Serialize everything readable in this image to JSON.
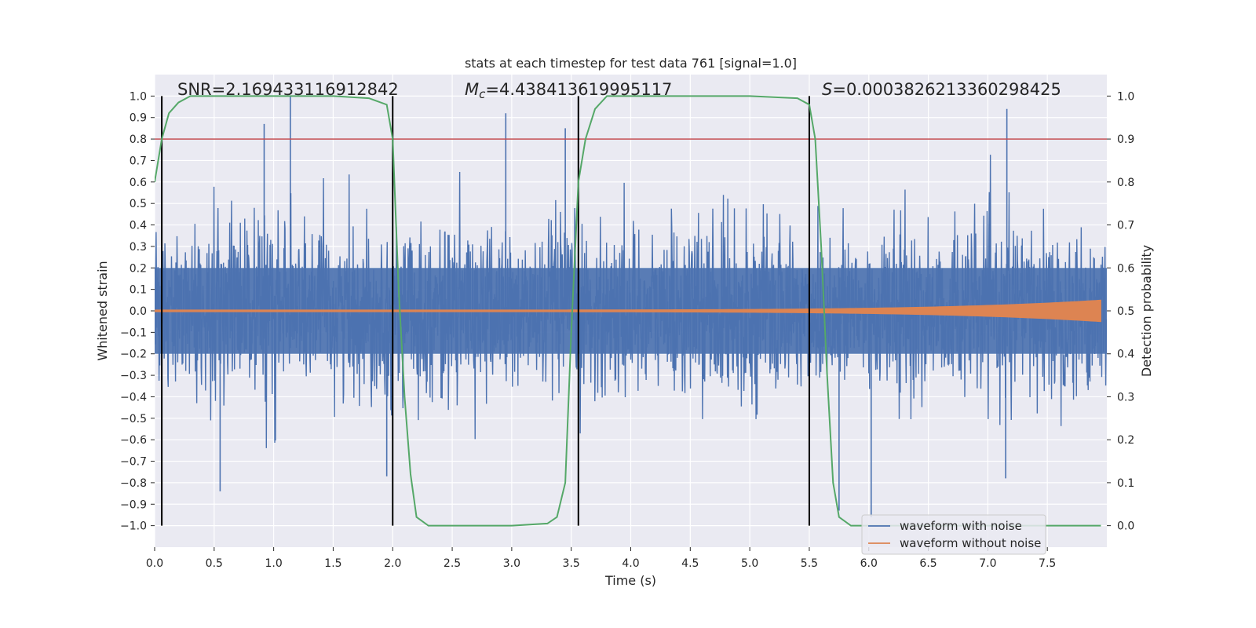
{
  "chart_data": {
    "type": "line",
    "title": "stats at each timestep for test data 761 [signal=1.0]",
    "xlabel": "Time (s)",
    "ylabel": "Whitened strain",
    "y2label": "Detection probability",
    "xlim": [
      0.0,
      8.0
    ],
    "ylim": [
      -1.1,
      1.1
    ],
    "y2lim": [
      -0.05,
      1.05
    ],
    "xticks": [
      0.0,
      0.5,
      1.0,
      1.5,
      2.0,
      2.5,
      3.0,
      3.5,
      4.0,
      4.5,
      5.0,
      5.5,
      6.0,
      6.5,
      7.0,
      7.5
    ],
    "xtick_labels": [
      "0.0",
      "0.5",
      "1.0",
      "1.5",
      "2.0",
      "2.5",
      "3.0",
      "3.5",
      "4.0",
      "4.5",
      "5.0",
      "5.5",
      "6.0",
      "6.5",
      "7.0",
      "7.5"
    ],
    "yticks": [
      -1.0,
      -0.9,
      -0.8,
      -0.7,
      -0.6,
      -0.5,
      -0.4,
      -0.3,
      -0.2,
      -0.1,
      0.0,
      0.1,
      0.2,
      0.3,
      0.4,
      0.5,
      0.6,
      0.7,
      0.8,
      0.9,
      1.0
    ],
    "ytick_labels": [
      "−1.0",
      "−0.9",
      "−0.8",
      "−0.7",
      "−0.6",
      "−0.5",
      "−0.4",
      "−0.3",
      "−0.2",
      "−0.1",
      "0.0",
      "0.1",
      "0.2",
      "0.3",
      "0.4",
      "0.5",
      "0.6",
      "0.7",
      "0.8",
      "0.9",
      "1.0"
    ],
    "y2ticks": [
      0.0,
      0.1,
      0.2,
      0.3,
      0.4,
      0.5,
      0.6,
      0.7,
      0.8,
      0.9,
      1.0
    ],
    "y2tick_labels": [
      "0.0",
      "0.1",
      "0.2",
      "0.3",
      "0.4",
      "0.5",
      "0.6",
      "0.7",
      "0.8",
      "0.9",
      "1.0"
    ],
    "grid": true,
    "legend_placement": "lower-right",
    "annotations": {
      "snr": "SNR=2.169433116912842",
      "mc_symbol": "M",
      "mc_sub": "c",
      "mc_value": "=4.438413619995117",
      "s_symbol": "S",
      "s_value": "=0.0003826213360298425"
    },
    "threshold_y": 0.8,
    "vertical_markers_x": [
      0.06,
      2.0,
      3.56,
      5.5
    ],
    "series": [
      {
        "name": "waveform with noise",
        "axis": "left",
        "color": "#4c72b0",
        "x_range": [
          0.0,
          8.0
        ],
        "envelope_approx": 0.45,
        "peak_spikes": [
          {
            "x": 1.14,
            "y": 1.0
          },
          {
            "x": 0.92,
            "y": 0.87
          },
          {
            "x": 2.95,
            "y": 0.92
          },
          {
            "x": 7.16,
            "y": 0.94
          },
          {
            "x": 3.45,
            "y": 0.85
          },
          {
            "x": 0.55,
            "y": -0.84
          },
          {
            "x": 5.75,
            "y": -0.93
          },
          {
            "x": 6.02,
            "y": -0.96
          },
          {
            "x": 7.15,
            "y": -0.78
          },
          {
            "x": 1.95,
            "y": -0.77
          }
        ]
      },
      {
        "name": "waveform without noise",
        "axis": "left",
        "color": "#dd8452",
        "x_range": [
          0.0,
          7.95
        ],
        "amplitude_start": 0.004,
        "amplitude_end": 0.05
      },
      {
        "name": "detection probability",
        "axis": "right",
        "color": "#55a868",
        "x": [
          0.0,
          0.06,
          0.12,
          0.2,
          0.3,
          0.5,
          1.0,
          1.5,
          1.8,
          1.95,
          2.0,
          2.05,
          2.1,
          2.15,
          2.2,
          2.3,
          2.5,
          3.0,
          3.3,
          3.38,
          3.45,
          3.5,
          3.56,
          3.62,
          3.7,
          3.8,
          4.0,
          4.5,
          5.0,
          5.4,
          5.5,
          5.55,
          5.6,
          5.65,
          5.7,
          5.75,
          5.85,
          6.0,
          7.0,
          7.95
        ],
        "values": [
          0.8,
          0.9,
          0.96,
          0.985,
          1.0,
          1.0,
          1.0,
          1.0,
          0.995,
          0.98,
          0.9,
          0.55,
          0.3,
          0.12,
          0.02,
          0.0,
          0.0,
          0.0,
          0.005,
          0.02,
          0.1,
          0.45,
          0.8,
          0.9,
          0.97,
          1.0,
          1.0,
          1.0,
          1.0,
          0.995,
          0.98,
          0.9,
          0.65,
          0.35,
          0.1,
          0.02,
          0.0,
          0.0,
          0.0,
          0.0
        ]
      }
    ]
  },
  "colors": {
    "axes_bg": "#eaeaf2",
    "grid": "#ffffff",
    "threshold": "#c44e52",
    "vline": "#000000"
  }
}
